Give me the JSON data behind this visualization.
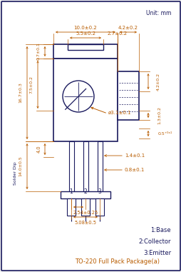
{
  "bg_color": "#f2f2f2",
  "line_color": "#1a1a5e",
  "dim_color": "#b85c00",
  "footer_text": "TO-220 Full Pack Package(a)",
  "legend_lines": [
    "1:Base",
    "2:Collector",
    "3:Emitter"
  ],
  "unit_text": "Unit: mm"
}
